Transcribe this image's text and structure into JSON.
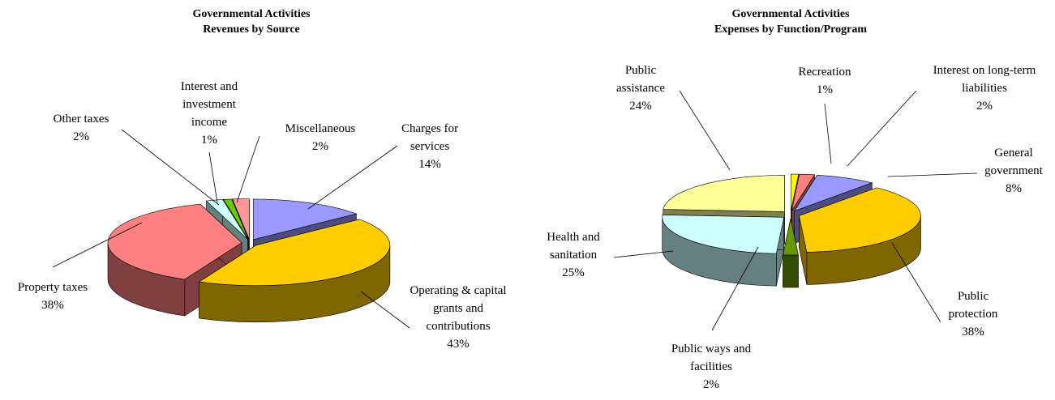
{
  "chart_data": [
    {
      "type": "pie",
      "title": "Governmental Activities",
      "subtitle": "Revenues by Source",
      "categories": [
        "Charges for services",
        "Operating & capital grants and contributions",
        "Property taxes",
        "Other taxes",
        "Interest and investment income",
        "Miscellaneous"
      ],
      "values": [
        14,
        43,
        38,
        2,
        1,
        2
      ],
      "value_labels": [
        "14%",
        "43%",
        "38%",
        "2%",
        "1%",
        "2%"
      ],
      "colors": [
        "#9999ff",
        "#ffcc00",
        "#ff8080",
        "#ccffff",
        "#66cc00",
        "#ff9999"
      ]
    },
    {
      "type": "pie",
      "title": "Governmental Activities",
      "subtitle": "Expenses by Function/Program",
      "categories": [
        "General government",
        "Public protection",
        "Public ways and facilities",
        "Health and sanitation",
        "Public assistance",
        "Recreation",
        "Interest on long-term liabilities"
      ],
      "values": [
        8,
        38,
        2,
        25,
        24,
        1,
        2
      ],
      "value_labels": [
        "8%",
        "38%",
        "2%",
        "25%",
        "24%",
        "1%",
        "2%"
      ],
      "colors": [
        "#9999ff",
        "#ffcc00",
        "#669900",
        "#ccffff",
        "#ffff99",
        "#ffff00",
        "#ff8080"
      ]
    }
  ]
}
